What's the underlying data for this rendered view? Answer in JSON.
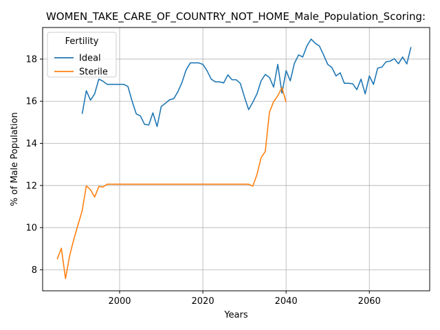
{
  "chart_data": {
    "type": "line",
    "title": "WOMEN_TAKE_CARE_OF_COUNTRY_NOT_HOME_Male_Population_Scoring:",
    "xlabel": "Years",
    "ylabel": "% of Male Population",
    "xlim": [
      1981.5,
      2074.5
    ],
    "ylim": [
      7.0,
      19.5
    ],
    "xticks": [
      2000,
      2020,
      2040,
      2060
    ],
    "yticks": [
      8,
      10,
      12,
      14,
      16,
      18
    ],
    "grid": true,
    "legend": {
      "title": "Fertility",
      "placement": "top-left"
    },
    "series": [
      {
        "name": "Ideal",
        "color": "#1f77b4",
        "x": [
          1991,
          1992,
          1993,
          1994,
          1995,
          1996,
          1997,
          1998,
          1999,
          2000,
          2001,
          2002,
          2003,
          2004,
          2005,
          2006,
          2007,
          2008,
          2009,
          2010,
          2011,
          2012,
          2013,
          2014,
          2015,
          2016,
          2017,
          2018,
          2019,
          2020,
          2021,
          2022,
          2023,
          2024,
          2025,
          2026,
          2027,
          2028,
          2029,
          2030,
          2031,
          2032,
          2033,
          2034,
          2035,
          2036,
          2037,
          2038,
          2039,
          2040,
          2041,
          2042,
          2043,
          2044,
          2045,
          2046,
          2047,
          2048,
          2049,
          2050,
          2051,
          2052,
          2053,
          2054,
          2055,
          2056,
          2057,
          2058,
          2059,
          2060,
          2061,
          2062,
          2063,
          2064,
          2065,
          2066,
          2067,
          2068,
          2069,
          2070
        ],
        "y": [
          15.4,
          16.5,
          16.05,
          16.35,
          17.05,
          16.95,
          16.8,
          16.8,
          16.8,
          16.8,
          16.8,
          16.7,
          16.0,
          15.4,
          15.3,
          14.9,
          14.87,
          15.45,
          14.8,
          15.75,
          15.9,
          16.07,
          16.12,
          16.45,
          16.9,
          17.5,
          17.82,
          17.82,
          17.82,
          17.75,
          17.45,
          17.05,
          16.92,
          16.92,
          16.87,
          17.25,
          17.02,
          17.02,
          16.85,
          16.2,
          15.6,
          15.95,
          16.35,
          16.97,
          17.27,
          17.13,
          16.67,
          17.75,
          16.38,
          17.45,
          16.97,
          17.8,
          18.2,
          18.1,
          18.62,
          18.95,
          18.75,
          18.62,
          18.2,
          17.75,
          17.6,
          17.2,
          17.35,
          16.85,
          16.85,
          16.83,
          16.55,
          17.05,
          16.35,
          17.2,
          16.8,
          17.57,
          17.62,
          17.87,
          17.9,
          18.02,
          17.78,
          18.1,
          17.77,
          18.57
        ]
      },
      {
        "name": "Sterile",
        "color": "#ff7f0e",
        "x": [
          1985,
          1986,
          1987,
          1988,
          1989,
          1990,
          1991,
          1992,
          1993,
          1994,
          1995,
          1996,
          1997,
          1998,
          1999,
          2000,
          2001,
          2002,
          2003,
          2004,
          2005,
          2006,
          2007,
          2008,
          2009,
          2010,
          2011,
          2012,
          2013,
          2014,
          2015,
          2016,
          2017,
          2018,
          2019,
          2020,
          2021,
          2022,
          2023,
          2024,
          2025,
          2026,
          2027,
          2028,
          2029,
          2030,
          2031,
          2032,
          2033,
          2034,
          2035,
          2036,
          2037,
          2038,
          2039,
          2040
        ],
        "y": [
          8.5,
          9.02,
          7.58,
          8.67,
          9.45,
          10.13,
          10.8,
          11.98,
          11.8,
          11.45,
          11.95,
          11.93,
          12.06,
          12.06,
          12.06,
          12.06,
          12.06,
          12.06,
          12.06,
          12.06,
          12.06,
          12.06,
          12.06,
          12.06,
          12.06,
          12.06,
          12.06,
          12.06,
          12.06,
          12.06,
          12.06,
          12.06,
          12.06,
          12.06,
          12.06,
          12.06,
          12.06,
          12.06,
          12.06,
          12.06,
          12.06,
          12.06,
          12.06,
          12.06,
          12.06,
          12.06,
          12.06,
          11.97,
          12.52,
          13.32,
          13.62,
          15.48,
          15.98,
          16.25,
          16.65,
          15.95
        ]
      }
    ]
  }
}
